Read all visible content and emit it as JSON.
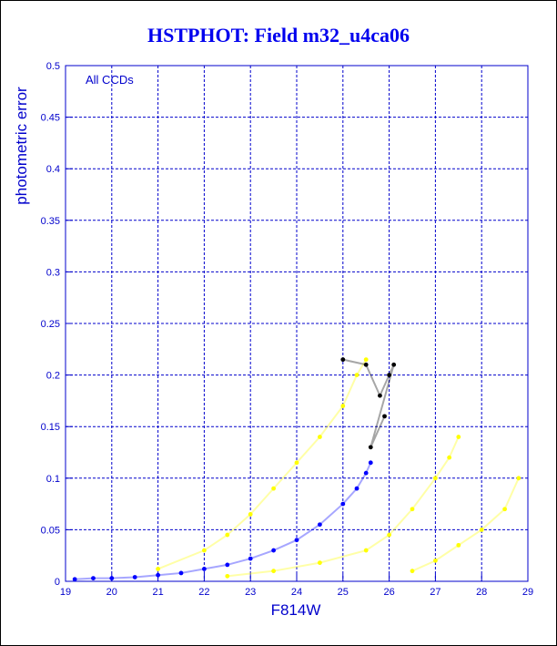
{
  "title": "HSTPHOT: Field m32_u4ca06",
  "chart_data": {
    "type": "scatter",
    "title": "HSTPHOT: Field m32_u4ca06",
    "xlabel": "F814W",
    "ylabel": "photometric error",
    "annotation": "All CCDs",
    "xlim": [
      19,
      29
    ],
    "ylim": [
      0,
      0.5
    ],
    "x_ticks": [
      19,
      20,
      21,
      22,
      23,
      24,
      25,
      26,
      27,
      28,
      29
    ],
    "y_ticks": [
      0,
      0.05,
      0.1,
      0.15,
      0.2,
      0.25,
      0.3,
      0.35,
      0.4,
      0.45,
      0.5
    ],
    "grid": true,
    "colors": {
      "axes": "#0000cc",
      "grid": "#0000cc",
      "main_sequence": "#0000ff",
      "scatter_upper": "#ffff00",
      "outliers": [
        "#000000",
        "#ff0000",
        "#00cc00"
      ]
    },
    "series": [
      {
        "color": "#0000ff",
        "points": [
          [
            19.2,
            0.002
          ],
          [
            19.6,
            0.003
          ],
          [
            20,
            0.003
          ],
          [
            20.5,
            0.004
          ],
          [
            21,
            0.006
          ],
          [
            21.5,
            0.008
          ],
          [
            22,
            0.012
          ],
          [
            22.5,
            0.016
          ],
          [
            23,
            0.022
          ],
          [
            23.5,
            0.03
          ],
          [
            24,
            0.04
          ],
          [
            24.5,
            0.055
          ],
          [
            25,
            0.075
          ],
          [
            25.3,
            0.09
          ],
          [
            25.5,
            0.105
          ],
          [
            25.6,
            0.115
          ]
        ]
      },
      {
        "color": "#ffff00",
        "points": [
          [
            21,
            0.012
          ],
          [
            22,
            0.03
          ],
          [
            22.5,
            0.045
          ],
          [
            23,
            0.065
          ],
          [
            23.5,
            0.09
          ],
          [
            24,
            0.115
          ],
          [
            24.5,
            0.14
          ],
          [
            25,
            0.17
          ],
          [
            25.3,
            0.2
          ],
          [
            25.5,
            0.215
          ]
        ]
      },
      {
        "color": "#ffff00",
        "points": [
          [
            22.5,
            0.005
          ],
          [
            23.5,
            0.01
          ],
          [
            24.5,
            0.018
          ],
          [
            25.5,
            0.03
          ],
          [
            26,
            0.045
          ],
          [
            26.5,
            0.07
          ],
          [
            27,
            0.1
          ],
          [
            27.3,
            0.12
          ],
          [
            27.5,
            0.14
          ]
        ]
      },
      {
        "color": "#ffff00",
        "points": [
          [
            26.5,
            0.01
          ],
          [
            27,
            0.02
          ],
          [
            27.5,
            0.035
          ],
          [
            28,
            0.05
          ],
          [
            28.5,
            0.07
          ],
          [
            28.8,
            0.1
          ]
        ]
      },
      {
        "color": "#000000",
        "points": [
          [
            25,
            0.215
          ],
          [
            25.5,
            0.21
          ],
          [
            25.8,
            0.18
          ],
          [
            26,
            0.2
          ],
          [
            26.1,
            0.21
          ],
          [
            25.6,
            0.13
          ],
          [
            25.9,
            0.16
          ]
        ]
      }
    ]
  }
}
